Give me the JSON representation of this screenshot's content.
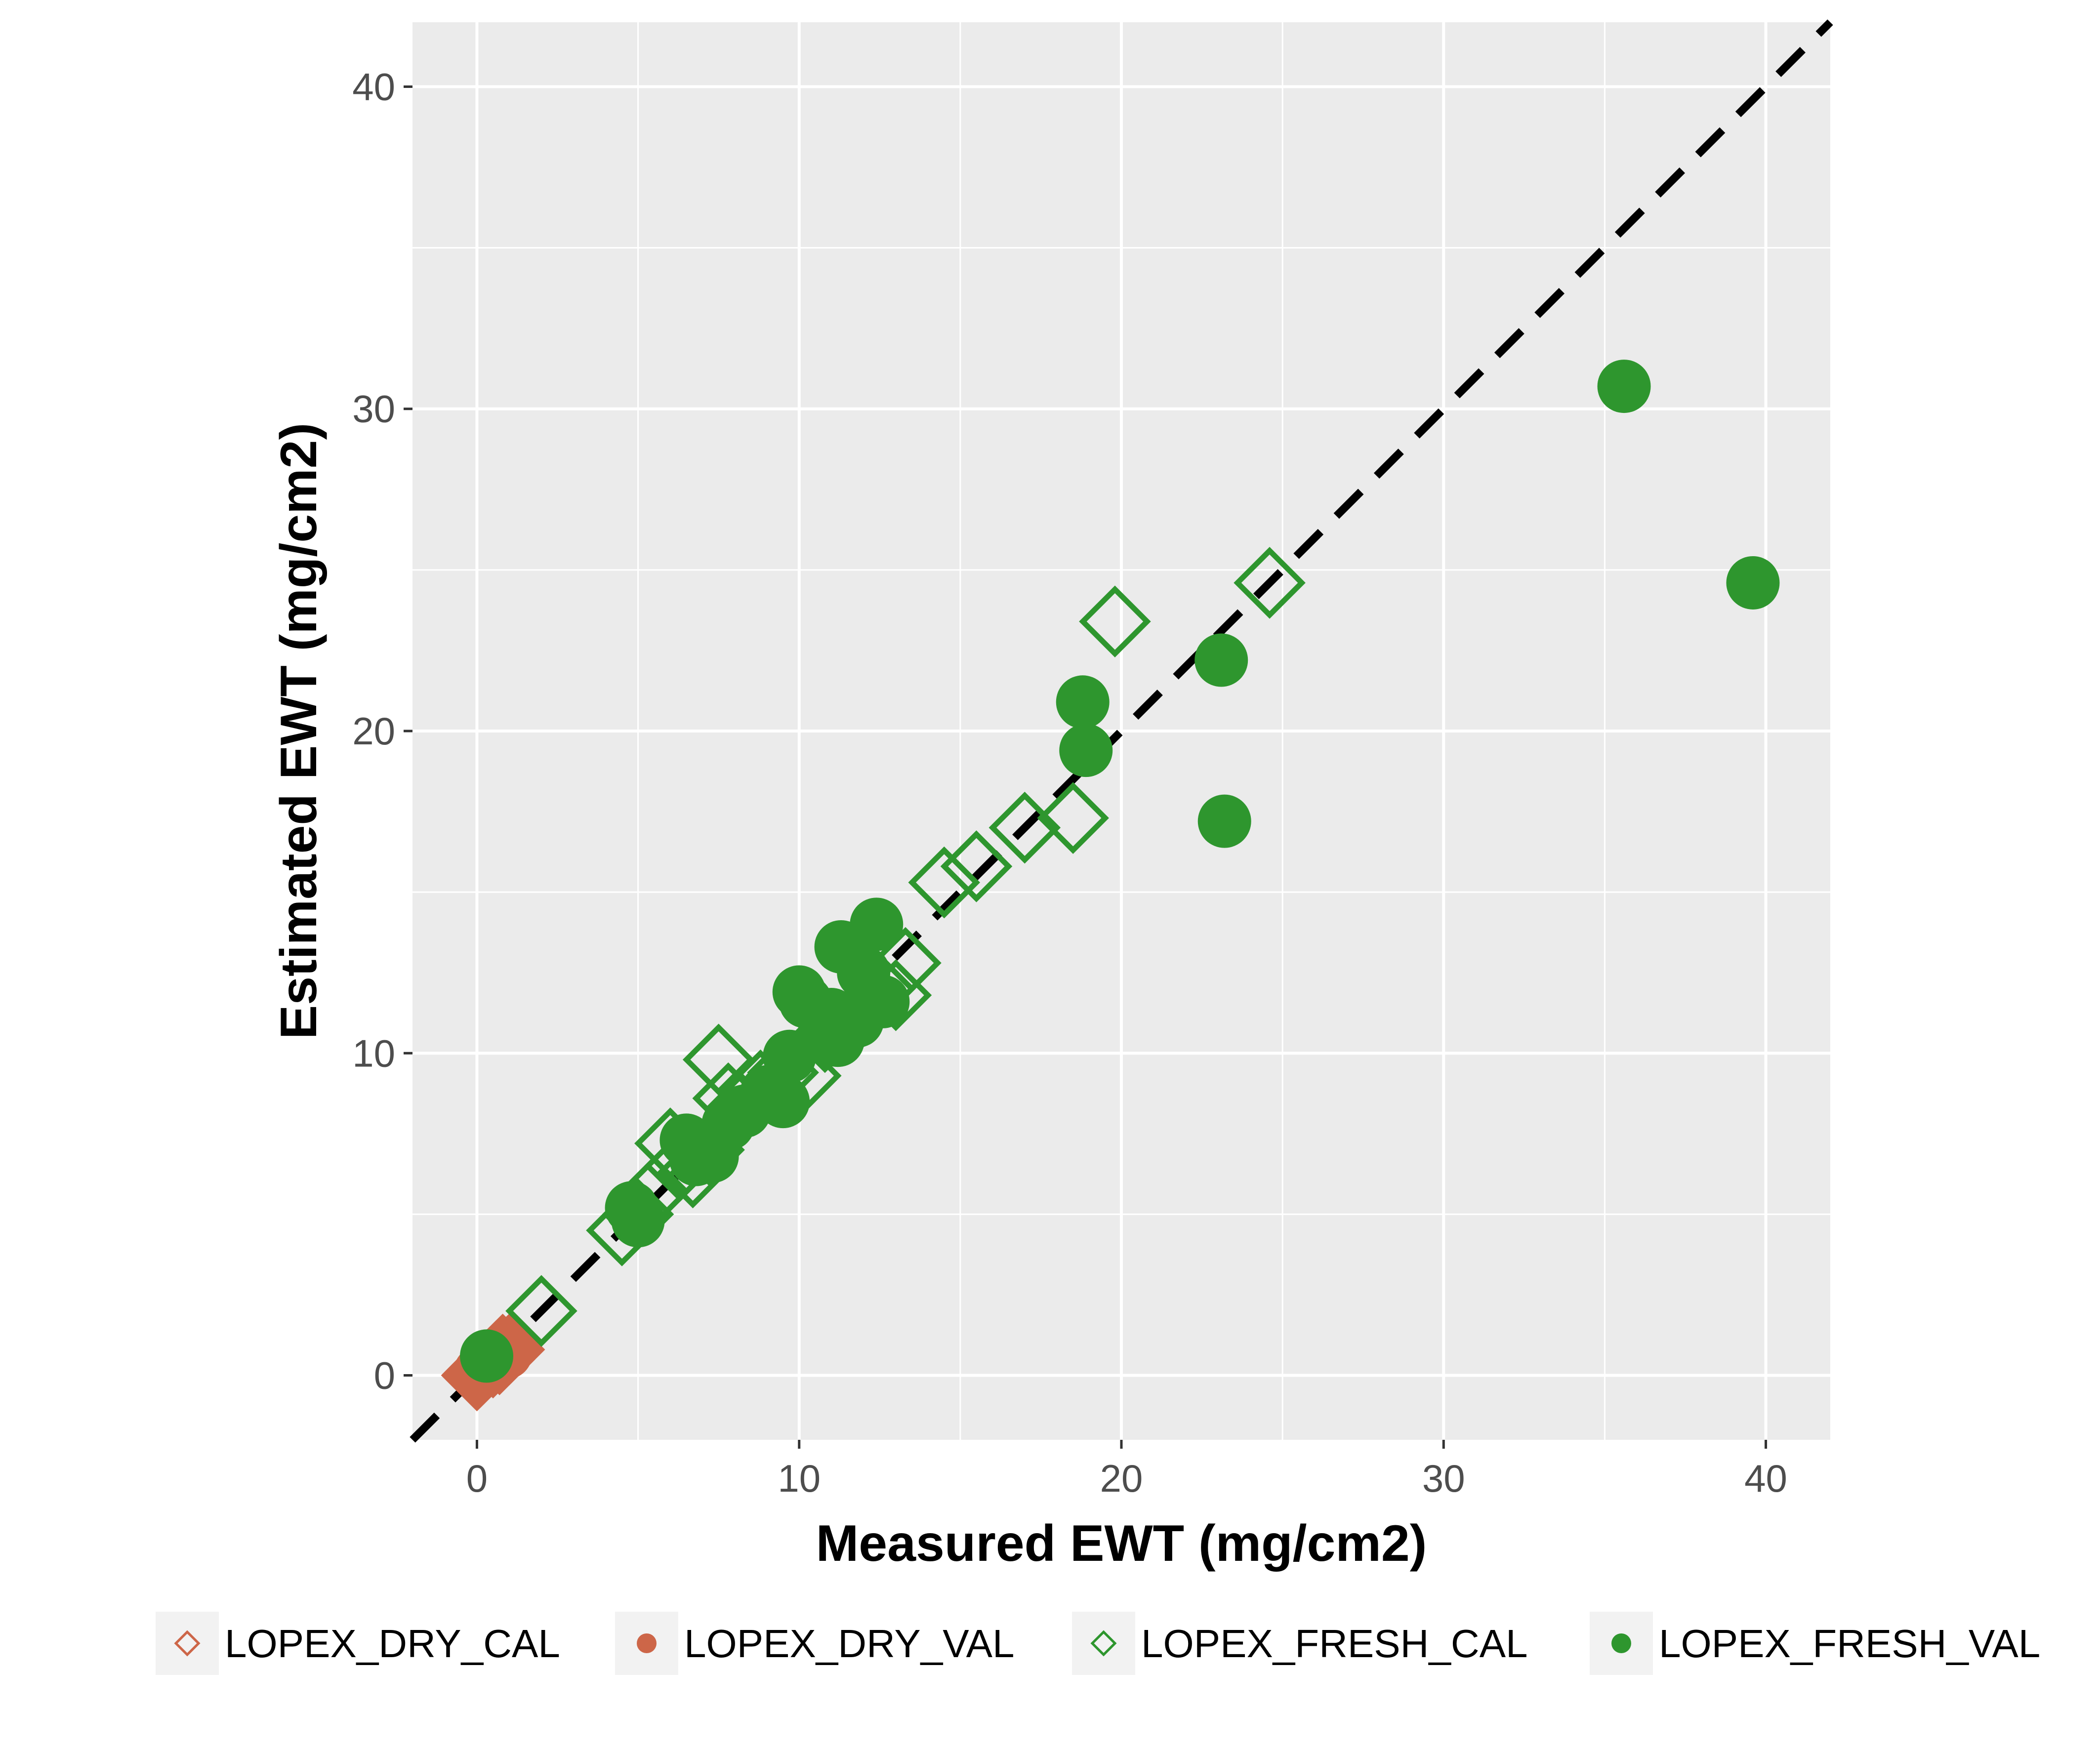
{
  "chart_data": {
    "type": "scatter",
    "title": "",
    "xlabel": "Measured EWT (mg/cm2)",
    "ylabel": "Estimated EWT (mg/cm2)",
    "xlim": [
      -2,
      42
    ],
    "ylim": [
      -2,
      42
    ],
    "x_ticks": [
      "0",
      "10",
      "20",
      "30",
      "40"
    ],
    "y_ticks": [
      "0",
      "10",
      "20",
      "30",
      "40"
    ],
    "grid": true,
    "background": "#ebebeb",
    "legend_position": "bottom",
    "reference_line": {
      "style": "dashed",
      "slope": 1,
      "intercept": 0,
      "color": "#000000"
    },
    "series": [
      {
        "name": "LOPEX_DRY_CAL",
        "marker": "open-diamond",
        "color": "#cd6648",
        "points": [
          [
            0.0,
            0.0
          ],
          [
            0.1,
            0.1
          ],
          [
            0.2,
            0.2
          ],
          [
            0.3,
            0.3
          ],
          [
            0.4,
            0.4
          ],
          [
            0.5,
            0.4
          ],
          [
            0.6,
            0.6
          ],
          [
            0.7,
            0.5
          ],
          [
            0.8,
            0.8
          ],
          [
            1.0,
            0.8
          ]
        ]
      },
      {
        "name": "LOPEX_DRY_VAL",
        "marker": "filled-circle",
        "color": "#cd6648",
        "points": [
          [
            0.1,
            0.1
          ],
          [
            0.3,
            0.3
          ],
          [
            0.5,
            0.5
          ],
          [
            0.7,
            0.7
          ],
          [
            0.9,
            0.7
          ],
          [
            1.0,
            0.9
          ]
        ]
      },
      {
        "name": "LOPEX_FRESH_CAL",
        "marker": "open-diamond",
        "color": "#2e962e",
        "points": [
          [
            2.0,
            2.0
          ],
          [
            4.5,
            4.5
          ],
          [
            5.0,
            5.0
          ],
          [
            5.5,
            5.7
          ],
          [
            6.0,
            7.2
          ],
          [
            6.3,
            6.5
          ],
          [
            6.7,
            6.3
          ],
          [
            7.2,
            7.0
          ],
          [
            7.5,
            9.8
          ],
          [
            7.8,
            8.6
          ],
          [
            8.2,
            8.3
          ],
          [
            8.8,
            9.0
          ],
          [
            9.5,
            9.4
          ],
          [
            10.2,
            9.3
          ],
          [
            10.8,
            10.5
          ],
          [
            11.5,
            10.8
          ],
          [
            12.0,
            11.4
          ],
          [
            12.5,
            12.0
          ],
          [
            13.0,
            11.8
          ],
          [
            13.3,
            12.8
          ],
          [
            14.5,
            15.3
          ],
          [
            15.5,
            15.8
          ],
          [
            17.0,
            17.0
          ],
          [
            18.5,
            17.3
          ],
          [
            19.8,
            23.4
          ],
          [
            24.6,
            24.6
          ]
        ]
      },
      {
        "name": "LOPEX_FRESH_VAL",
        "marker": "filled-circle",
        "color": "#2e962e",
        "points": [
          [
            0.3,
            0.6
          ],
          [
            4.8,
            5.2
          ],
          [
            5.0,
            4.8
          ],
          [
            6.5,
            7.3
          ],
          [
            6.8,
            6.7
          ],
          [
            7.3,
            6.8
          ],
          [
            7.8,
            7.8
          ],
          [
            8.3,
            8.2
          ],
          [
            9.0,
            8.8
          ],
          [
            9.5,
            8.5
          ],
          [
            9.7,
            9.9
          ],
          [
            10.0,
            11.9
          ],
          [
            10.2,
            11.6
          ],
          [
            10.8,
            10.8
          ],
          [
            11.0,
            11.2
          ],
          [
            11.2,
            10.4
          ],
          [
            11.3,
            13.3
          ],
          [
            11.8,
            11.0
          ],
          [
            12.0,
            12.5
          ],
          [
            12.4,
            14.0
          ],
          [
            12.6,
            11.6
          ],
          [
            18.8,
            20.9
          ],
          [
            18.9,
            19.4
          ],
          [
            23.1,
            22.2
          ],
          [
            23.2,
            17.2
          ],
          [
            35.6,
            30.7
          ],
          [
            39.6,
            24.6
          ]
        ]
      }
    ]
  }
}
